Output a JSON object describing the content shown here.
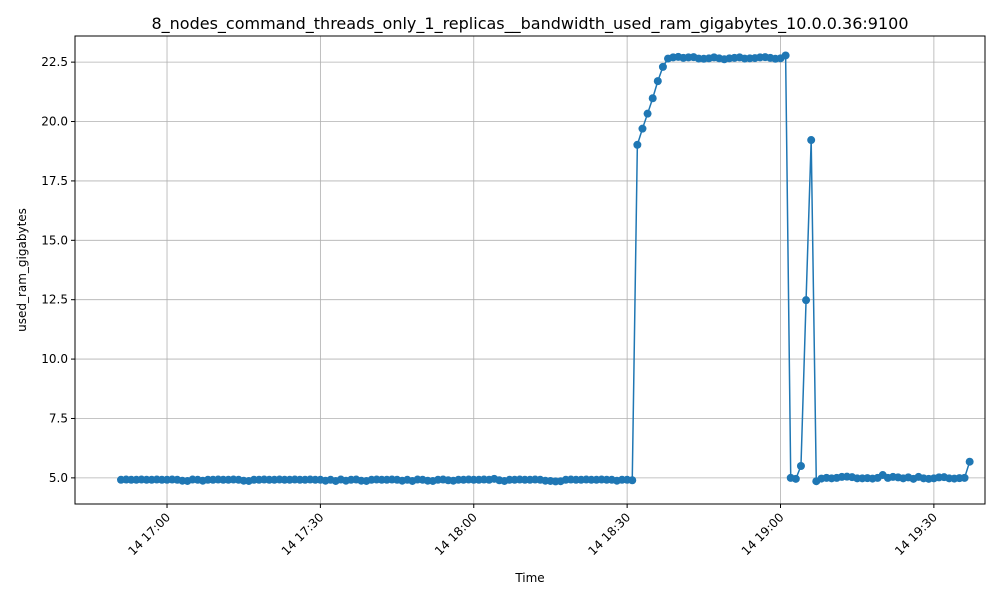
{
  "chart_data": {
    "type": "line",
    "title": "8_nodes_command_threads_only_1_replicas__bandwidth_used_ram_gigabytes_10.0.0.36:9100",
    "xlabel": "Time",
    "ylabel": "used_ram_gigabytes",
    "x_ticks": [
      {
        "value": "16:40",
        "label": "14 17:00"
      },
      {
        "value": "17:10",
        "label": "14 17:30"
      },
      {
        "value": "17:40",
        "label": "14 18:00"
      },
      {
        "value": "18:10",
        "label": "14 18:30"
      },
      {
        "value": "18:40",
        "label": "14 19:00"
      },
      {
        "value": "19:10",
        "label": "14 19:30"
      }
    ],
    "y_ticks": [
      5.0,
      7.5,
      10.0,
      12.5,
      15.0,
      17.5,
      20.0,
      22.5
    ],
    "y_tick_labels": [
      "5.0",
      "7.5",
      "10.0",
      "12.5",
      "15.0",
      "17.5",
      "20.0",
      "22.5"
    ],
    "xlim": [
      "16:22",
      "19:20"
    ],
    "ylim": [
      3.9,
      23.6
    ],
    "grid": true,
    "color": "#1f77b4",
    "series": [
      {
        "x": [
          "16:31",
          "16:32",
          "16:33",
          "16:34",
          "16:35",
          "16:36",
          "16:37",
          "16:38",
          "16:39",
          "16:40",
          "16:41",
          "16:42",
          "16:43",
          "16:44",
          "16:45",
          "16:46",
          "16:47",
          "16:48",
          "16:49",
          "16:50",
          "16:51",
          "16:52",
          "16:53",
          "16:54",
          "16:55",
          "16:56",
          "16:57",
          "16:58",
          "16:59",
          "17:00",
          "17:01",
          "17:02",
          "17:03",
          "17:04",
          "17:05",
          "17:06",
          "17:07",
          "17:08",
          "17:09",
          "17:10",
          "17:11",
          "17:12",
          "17:13",
          "17:14",
          "17:15",
          "17:16",
          "17:17",
          "17:18",
          "17:19",
          "17:20",
          "17:21",
          "17:22",
          "17:23",
          "17:24",
          "17:25",
          "17:26",
          "17:27",
          "17:28",
          "17:29",
          "17:30",
          "17:31",
          "17:32",
          "17:33",
          "17:34",
          "17:35",
          "17:36",
          "17:37",
          "17:38",
          "17:39",
          "17:40",
          "17:41",
          "17:42",
          "17:43",
          "17:44",
          "17:45",
          "17:46",
          "17:47",
          "17:48",
          "17:49",
          "17:50",
          "17:51",
          "17:52",
          "17:53",
          "17:54",
          "17:55",
          "17:56",
          "17:57",
          "17:58",
          "17:59",
          "18:00",
          "18:01",
          "18:02",
          "18:03",
          "18:04",
          "18:05",
          "18:06",
          "18:07",
          "18:08",
          "18:09",
          "18:10",
          "18:11",
          "18:12",
          "18:13",
          "18:14",
          "18:15",
          "18:16",
          "18:17",
          "18:18",
          "18:19",
          "18:20",
          "18:21",
          "18:22",
          "18:23",
          "18:24",
          "18:25",
          "18:26",
          "18:27",
          "18:28",
          "18:29",
          "18:30",
          "18:31",
          "18:32",
          "18:33",
          "18:34",
          "18:35",
          "18:36",
          "18:37",
          "18:38",
          "18:39",
          "18:40",
          "18:41",
          "18:42",
          "18:43",
          "18:44",
          "18:45",
          "18:46",
          "18:47",
          "18:48",
          "18:49",
          "18:50",
          "18:51",
          "18:52",
          "18:53",
          "18:54",
          "18:55",
          "18:56",
          "18:57",
          "18:58",
          "18:59",
          "19:00",
          "19:01",
          "19:02",
          "19:03",
          "19:04",
          "19:05",
          "19:06",
          "19:07",
          "19:08",
          "19:09",
          "19:10",
          "19:11",
          "19:12",
          "19:13",
          "19:14",
          "19:15",
          "19:16",
          "19:17"
        ],
        "y": [
          4.92,
          4.93,
          4.92,
          4.92,
          4.93,
          4.92,
          4.92,
          4.93,
          4.92,
          4.92,
          4.93,
          4.92,
          4.88,
          4.87,
          4.93,
          4.92,
          4.88,
          4.92,
          4.92,
          4.93,
          4.92,
          4.92,
          4.93,
          4.92,
          4.88,
          4.87,
          4.92,
          4.92,
          4.93,
          4.92,
          4.92,
          4.93,
          4.92,
          4.92,
          4.93,
          4.92,
          4.92,
          4.93,
          4.92,
          4.92,
          4.88,
          4.92,
          4.87,
          4.93,
          4.88,
          4.92,
          4.93,
          4.88,
          4.87,
          4.92,
          4.93,
          4.92,
          4.92,
          4.93,
          4.92,
          4.88,
          4.92,
          4.87,
          4.93,
          4.92,
          4.88,
          4.87,
          4.92,
          4.93,
          4.9,
          4.88,
          4.92,
          4.92,
          4.93,
          4.92,
          4.92,
          4.93,
          4.92,
          4.96,
          4.9,
          4.87,
          4.92,
          4.92,
          4.93,
          4.92,
          4.92,
          4.93,
          4.92,
          4.88,
          4.87,
          4.85,
          4.86,
          4.92,
          4.93,
          4.92,
          4.92,
          4.93,
          4.92,
          4.92,
          4.93,
          4.92,
          4.92,
          4.88,
          4.92,
          4.92,
          4.9,
          19.02,
          19.7,
          20.33,
          20.98,
          21.7,
          22.3,
          22.65,
          22.7,
          22.72,
          22.68,
          22.7,
          22.71,
          22.65,
          22.64,
          22.66,
          22.7,
          22.66,
          22.62,
          22.66,
          22.68,
          22.7,
          22.65,
          22.66,
          22.67,
          22.7,
          22.71,
          22.68,
          22.64,
          22.66,
          22.78,
          5.0,
          4.96,
          5.5,
          12.48,
          19.22,
          4.86,
          4.97,
          5.0,
          4.98,
          5.0,
          5.04,
          5.05,
          5.03,
          4.98,
          4.98,
          4.99,
          4.97,
          5.0,
          5.12,
          5.0,
          5.04,
          5.02,
          4.98,
          5.02,
          4.96,
          5.04,
          4.98,
          4.96,
          4.98,
          5.02,
          5.03,
          4.98,
          4.97,
          4.99,
          5.0,
          5.68
        ]
      }
    ]
  }
}
